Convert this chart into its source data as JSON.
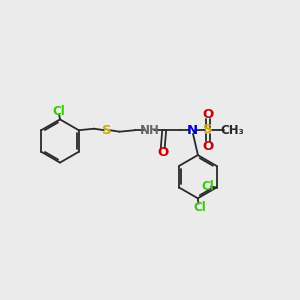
{
  "bg_color": "#ebebeb",
  "bond_color": "#2a2a2a",
  "cl_color": "#33cc00",
  "s_color": "#ccaa00",
  "n_color": "#0000cc",
  "o_color": "#cc0000",
  "h_color": "#666666",
  "lw": 1.3,
  "figsize": [
    3.0,
    3.0
  ],
  "dpi": 100,
  "xlim": [
    0,
    10
  ],
  "ylim": [
    0,
    10
  ]
}
